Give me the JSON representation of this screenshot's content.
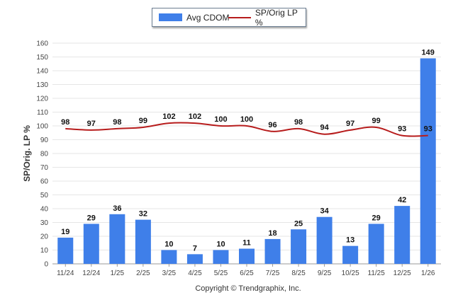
{
  "legend": {
    "bar_label": "Avg CDOM",
    "line_label": "SP/Orig LP %"
  },
  "footer": {
    "copyright": "Copyright © Trendgraphix, Inc."
  },
  "colors": {
    "bar": "#3f7fe9",
    "line": "#b71c1c",
    "grid": "#e6e6e6",
    "axis": "#999999"
  },
  "chart_data": {
    "type": "bar",
    "categories": [
      "11/24",
      "12/24",
      "1/25",
      "2/25",
      "3/25",
      "4/25",
      "5/25",
      "6/25",
      "7/25",
      "8/25",
      "9/25",
      "10/25",
      "11/25",
      "12/25",
      "1/26"
    ],
    "series": [
      {
        "name": "Avg CDOM",
        "type": "bar",
        "values": [
          19,
          29,
          36,
          32,
          10,
          7,
          10,
          11,
          18,
          25,
          34,
          13,
          29,
          42,
          149
        ]
      },
      {
        "name": "SP/Orig LP %",
        "type": "line",
        "values": [
          98,
          97,
          98,
          99,
          102,
          102,
          100,
          100,
          96,
          98,
          94,
          97,
          99,
          93,
          93
        ]
      }
    ],
    "ylabel": "SP/Orig. LP %",
    "xlabel": "",
    "ylim": [
      0,
      160
    ],
    "yticks": [
      0,
      10,
      20,
      30,
      40,
      50,
      60,
      70,
      80,
      90,
      100,
      110,
      120,
      130,
      140,
      150,
      160
    ],
    "grid": true,
    "legend_position": "top-center"
  }
}
